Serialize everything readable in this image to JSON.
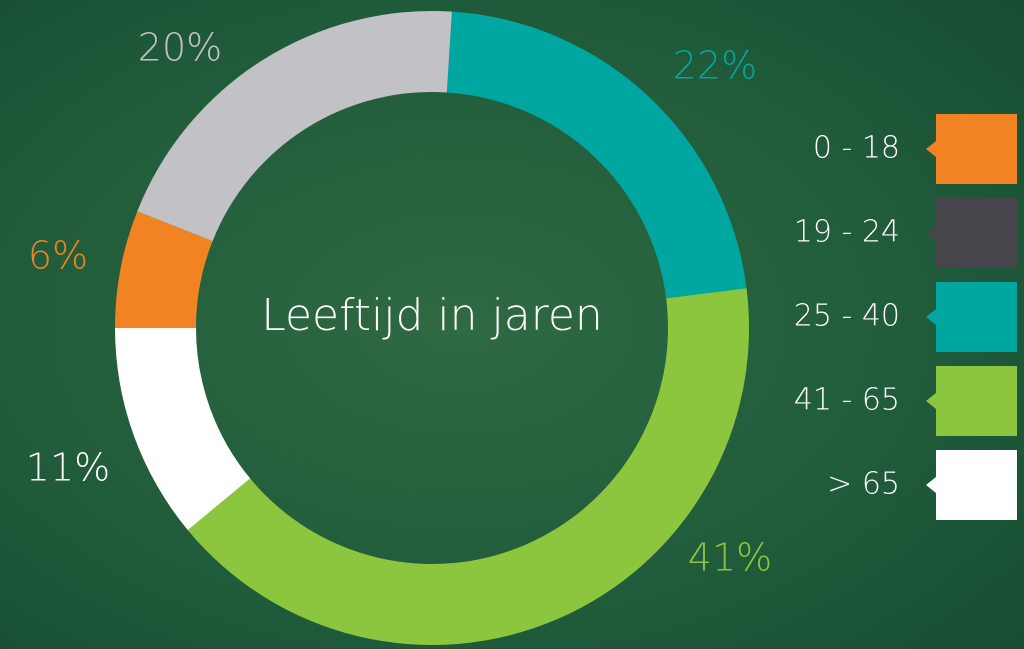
{
  "chart_data": {
    "type": "pie",
    "title": "Leeftijd in jaren",
    "categories": [
      "0 - 18",
      "19 - 24",
      "25 - 40",
      "41 - 65",
      "> 65"
    ],
    "values": [
      6,
      20,
      22,
      41,
      11
    ],
    "value_labels": [
      "6%",
      "20%",
      "22%",
      "41%",
      "11%"
    ],
    "colors": [
      "#f28322",
      "#c2c1c6",
      "#00a7a0",
      "#8cc63f",
      "#ffffff"
    ],
    "legend_colors": [
      "#f28322",
      "#47454c",
      "#00a7a0",
      "#8cc63f",
      "#ffffff"
    ],
    "legend": "right"
  }
}
